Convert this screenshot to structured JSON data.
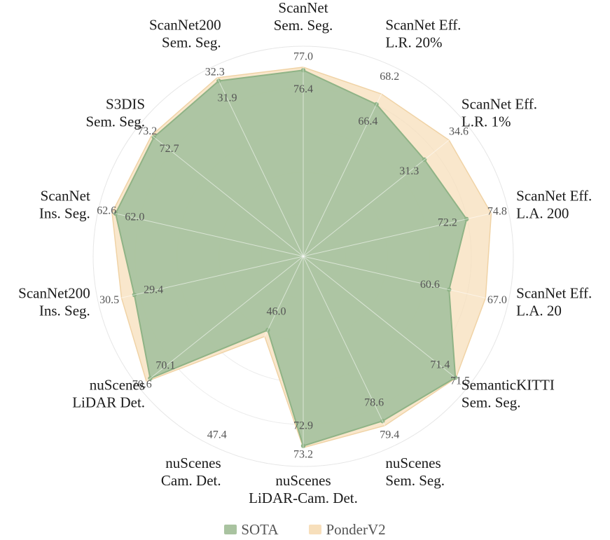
{
  "chart_data": {
    "type": "radar",
    "axes": [
      {
        "label": [
          "ScanNet",
          "Sem. Seg."
        ],
        "sota": 76.4,
        "ponder": 77.0,
        "min": 40.0,
        "max": 80.0
      },
      {
        "label": [
          "ScanNet Eff.",
          "L.R. 20%"
        ],
        "sota": 66.4,
        "ponder": 68.2,
        "min": 40.0,
        "max": 72.0
      },
      {
        "label": [
          "ScanNet Eff.",
          "L.R. 1%"
        ],
        "sota": 31.3,
        "ponder": 34.6,
        "min": 15.0,
        "max": 36.5
      },
      {
        "label": [
          "ScanNet Eff.",
          "L.A. 200"
        ],
        "sota": 72.2,
        "ponder": 74.8,
        "min": 55.0,
        "max": 76.0
      },
      {
        "label": [
          "ScanNet Eff.",
          "L.A. 20"
        ],
        "sota": 60.6,
        "ponder": 67.0,
        "min": 35.0,
        "max": 70.0
      },
      {
        "label": [
          "SemanticKITTI",
          "Sem. Seg."
        ],
        "sota": 71.4,
        "ponder": 71.5,
        "min": 40.0,
        "max": 73.0
      },
      {
        "label": [
          "nuScenes",
          "Sem. Seg."
        ],
        "sota": 78.6,
        "ponder": 79.4,
        "min": 50.0,
        "max": 82.0
      },
      {
        "label": [
          "nuScenes",
          "LiDAR-Cam. Det."
        ],
        "sota": 72.9,
        "ponder": 73.2,
        "min": 40.0,
        "max": 75.5
      },
      {
        "label": [
          "nuScenes",
          "Cam. Det."
        ],
        "sota": 46.0,
        "ponder": 47.4,
        "min": 30.0,
        "max": 70.0
      },
      {
        "label": [
          "nuScenes",
          "LiDAR Det."
        ],
        "sota": 70.1,
        "ponder": 70.6,
        "min": 50.0,
        "max": 71.0
      },
      {
        "label": [
          "ScanNet200",
          "Ins. Seg."
        ],
        "sota": 29.4,
        "ponder": 30.5,
        "min": 15.0,
        "max": 32.0
      },
      {
        "label": [
          "ScanNet",
          "Ins. Seg."
        ],
        "sota": 62.0,
        "ponder": 62.6,
        "min": 30.0,
        "max": 64.0
      },
      {
        "label": [
          "S3DIS",
          "Sem. Seg."
        ],
        "sota": 72.7,
        "ponder": 73.2,
        "min": 40.0,
        "max": 75.0
      },
      {
        "label": [
          "ScanNet200",
          "Sem. Seg."
        ],
        "sota": 31.9,
        "ponder": 32.3,
        "min": 10.0,
        "max": 33.0
      }
    ],
    "sota_value_labels": [
      "76.4",
      "66.4",
      "31.3",
      "72.2",
      "60.6",
      "71.4",
      "78.6",
      "72.9",
      "46.0",
      "70.1",
      "29.4",
      "62.0",
      "72.7",
      "31.9"
    ],
    "ponder_value_labels": [
      "77.0",
      "68.2",
      "34.6",
      "74.8",
      "67.0",
      "71.5",
      "79.4",
      "73.2",
      "47.4",
      "70.6",
      "30.5",
      "62.6",
      "73.2",
      "32.3"
    ],
    "series": [
      {
        "name": "SOTA",
        "color": "#a9c3a0",
        "stroke": "#8fb386"
      },
      {
        "name": "PonderV2",
        "color": "#f7dfbb",
        "stroke": "#f0d3a6"
      }
    ],
    "grid": true,
    "legend_position": "bottom"
  }
}
